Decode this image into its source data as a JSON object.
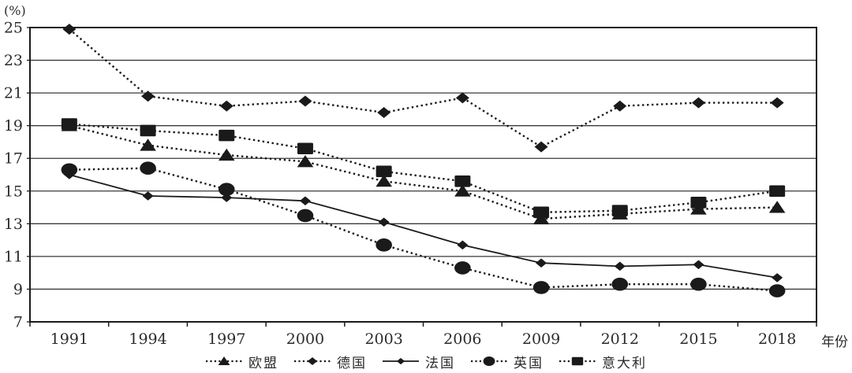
{
  "figure": {
    "unit_label": "(%)",
    "xaxis_label": "年份"
  },
  "chart_data": {
    "type": "line",
    "title": "",
    "xlabel": "年份",
    "ylabel": "(%)",
    "ylim": [
      7,
      25
    ],
    "ytick_step": 2,
    "yticks": [
      7,
      9,
      11,
      13,
      15,
      17,
      19,
      21,
      23,
      25
    ],
    "grid": true,
    "legend_position": "bottom-center",
    "line_color": "#1a1a1a",
    "grid_color": "#3a3a3a",
    "categories": [
      "1991",
      "1994",
      "1997",
      "2000",
      "2003",
      "2006",
      "2009",
      "2012",
      "2015",
      "2018"
    ],
    "series": [
      {
        "name": "欧盟",
        "marker": "triangle",
        "line_style": "dotted",
        "values": [
          19.0,
          17.8,
          17.2,
          16.8,
          15.6,
          15.0,
          13.3,
          13.6,
          13.9,
          14.0
        ]
      },
      {
        "name": "德国",
        "marker": "diamond",
        "line_style": "dotted",
        "values": [
          24.9,
          20.8,
          20.2,
          20.5,
          19.8,
          20.7,
          17.7,
          20.2,
          20.4,
          20.4
        ]
      },
      {
        "name": "法国",
        "marker": "diamond-small",
        "line_style": "solid",
        "values": [
          16.0,
          14.7,
          14.6,
          14.4,
          13.1,
          11.7,
          10.6,
          10.4,
          10.5,
          9.7
        ]
      },
      {
        "name": "英国",
        "marker": "circle",
        "line_style": "dotted",
        "values": [
          16.3,
          16.4,
          15.1,
          13.5,
          11.7,
          10.3,
          9.1,
          9.3,
          9.3,
          8.9
        ]
      },
      {
        "name": "意大利",
        "marker": "square",
        "line_style": "dotted",
        "values": [
          19.1,
          18.7,
          18.4,
          17.6,
          16.2,
          15.6,
          13.7,
          13.8,
          14.3,
          15.0
        ]
      }
    ]
  }
}
